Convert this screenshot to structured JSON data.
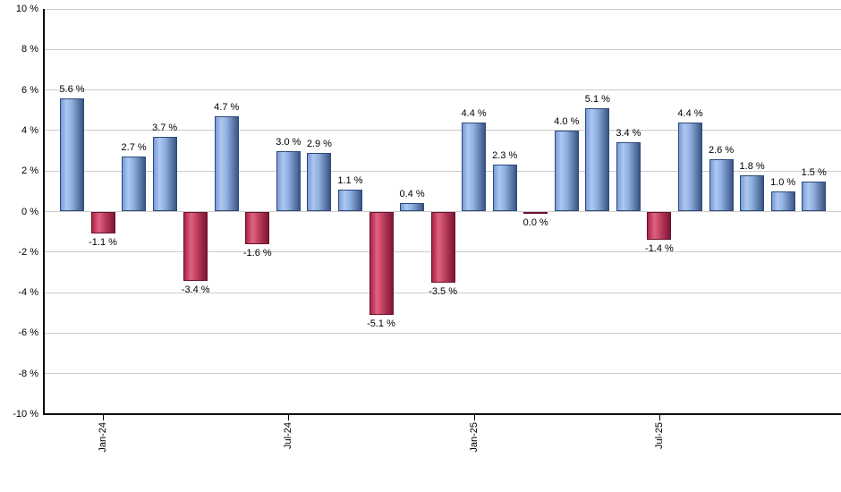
{
  "chart_data": {
    "type": "bar",
    "title": "",
    "xlabel": "",
    "ylabel": "",
    "ylim": [
      -10,
      10
    ],
    "grid": true,
    "legend": "none",
    "unit": "%",
    "values": [
      5.6,
      -1.1,
      2.7,
      3.7,
      -3.4,
      4.7,
      -1.6,
      3.0,
      2.9,
      1.1,
      -5.1,
      0.4,
      -3.5,
      4.4,
      2.3,
      0.0,
      4.0,
      5.1,
      3.4,
      -1.4,
      4.4,
      2.6,
      1.8,
      1.0,
      1.5
    ],
    "value_labels": [
      "5.6 %",
      "-1.1 %",
      "2.7 %",
      "3.7 %",
      "-3.4 %",
      "4.7 %",
      "-1.6 %",
      "3.0 %",
      "2.9 %",
      "1.1 %",
      "-5.1 %",
      "0.4 %",
      "-3.5 %",
      "4.4 %",
      "2.3 %",
      "0.0 %",
      "4.0 %",
      "5.1 %",
      "3.4 %",
      "-1.4 %",
      "4.4 %",
      "2.6 %",
      "1.8 %",
      "1.0 %",
      "1.5 %"
    ],
    "x_ticks": [
      {
        "index": 1,
        "label": "Jan-24"
      },
      {
        "index": 7,
        "label": "Jul-24"
      },
      {
        "index": 13,
        "label": "Jan-25"
      },
      {
        "index": 19,
        "label": "Jul-25"
      }
    ],
    "y_ticks": [
      {
        "pct": 10,
        "label": "10 %"
      },
      {
        "pct": 8,
        "label": "8 %"
      },
      {
        "pct": 6,
        "label": "6 %"
      },
      {
        "pct": 4,
        "label": "4 %"
      },
      {
        "pct": 2,
        "label": "2 %"
      },
      {
        "pct": 0,
        "label": "0 %"
      },
      {
        "pct": -2,
        "label": "-2 %"
      },
      {
        "pct": -4,
        "label": "-4 %"
      },
      {
        "pct": -6,
        "label": "-6 %"
      },
      {
        "pct": -8,
        "label": "-8 %"
      },
      {
        "pct": -10,
        "label": "-10 %"
      }
    ],
    "positive_color": "#8fafdf",
    "negative_color": "#b93a5b",
    "gridline_color": "#cccccc",
    "axis_color": "#000000"
  }
}
